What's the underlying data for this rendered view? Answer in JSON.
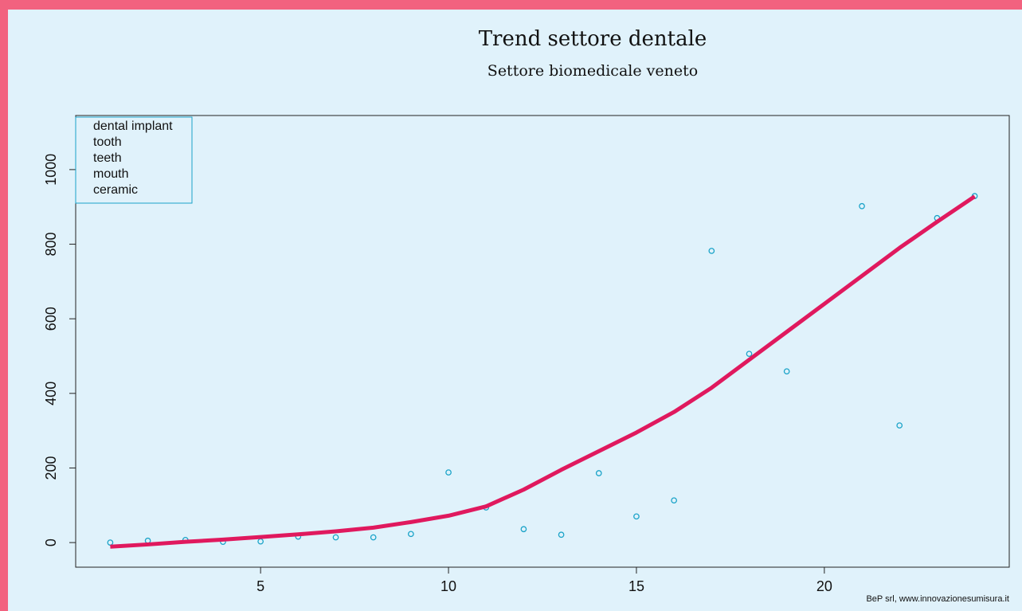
{
  "chart_data": {
    "type": "scatter",
    "title": "Trend settore dentale",
    "subtitle": "Settore biomedicale veneto",
    "legend": [
      "dental implant",
      "tooth",
      "teeth",
      "mouth",
      "ceramic"
    ],
    "legend_position": "top-left",
    "credit": "BeP srl, www.innovazionesumisura.it",
    "x": [
      1,
      2,
      3,
      4,
      5,
      6,
      7,
      8,
      9,
      10,
      11,
      12,
      13,
      14,
      15,
      16,
      17,
      18,
      19,
      20,
      21,
      22,
      23,
      24
    ],
    "series": [
      {
        "type": "scatter",
        "color": "#1aa3c8",
        "values": [
          0,
          5,
          7,
          2,
          3,
          16,
          14,
          14,
          23,
          188,
          94,
          36,
          21,
          186,
          70,
          113,
          782,
          506,
          459,
          null,
          902,
          314,
          870,
          929
        ]
      },
      {
        "type": "line",
        "color": "#e0195e",
        "values": [
          -11,
          -5,
          2,
          8,
          15,
          22,
          30,
          40,
          55,
          72,
          97,
          142,
          195,
          245,
          295,
          350,
          415,
          490,
          565,
          640,
          715,
          790,
          860,
          928
        ]
      }
    ],
    "xlim": [
      0.08,
      24.92
    ],
    "ylim": [
      -66,
      1145
    ],
    "xticks": [
      5,
      10,
      15,
      20
    ],
    "yticks": [
      0,
      200,
      400,
      600,
      800,
      1000
    ],
    "grid": false
  }
}
